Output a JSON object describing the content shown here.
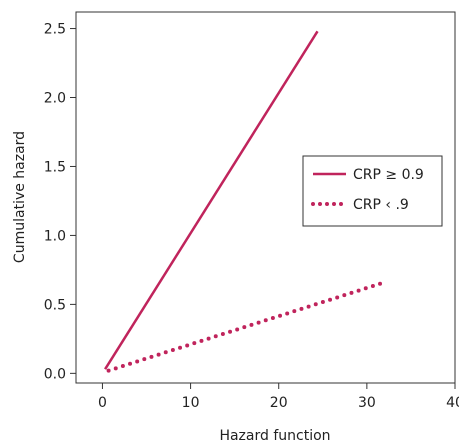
{
  "chart_data": {
    "type": "line",
    "title": "",
    "xlabel": "Hazard function",
    "ylabel": "Cumulative hazard",
    "xlim": [
      -3,
      40
    ],
    "ylim": [
      -0.07,
      2.62
    ],
    "x_ticks": [
      0,
      10,
      20,
      30,
      40
    ],
    "x_tick_labels": [
      "0",
      "10",
      "20",
      "30",
      "40"
    ],
    "y_ticks": [
      0.0,
      0.5,
      1.0,
      1.5,
      2.0,
      2.5
    ],
    "y_tick_labels": [
      "0.0",
      "0.5",
      "1.0",
      "1.5",
      "2.0",
      "2.5"
    ],
    "grid": false,
    "legend_position": "right",
    "series": [
      {
        "name": "CRP ≥ 0.9",
        "style": "solid",
        "color": "#c0245c",
        "x": [
          0.3,
          24.4
        ],
        "y": [
          0.03,
          2.48
        ]
      },
      {
        "name": "CRP ‹ .9",
        "style": "dotted",
        "color": "#c0245c",
        "x": [
          0.7,
          32.0
        ],
        "y": [
          0.02,
          0.66
        ]
      }
    ]
  }
}
